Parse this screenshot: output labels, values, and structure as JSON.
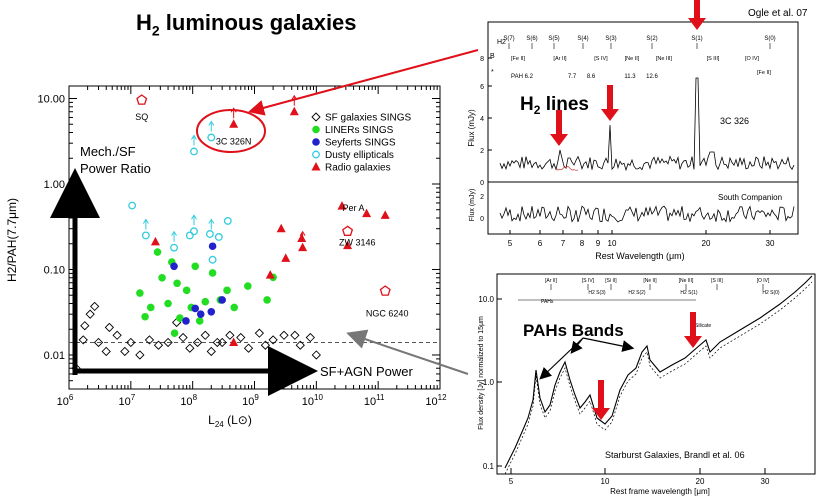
{
  "page_title": "H₂ luminous galaxies",
  "title_main": "H",
  "title_sub": "2",
  "title_rest": " luminous galaxies",
  "colors": {
    "red": "#e0101a",
    "green": "#22dd22",
    "blue": "#2222cc",
    "cyan": "#33ccdd",
    "gray": "#777777"
  },
  "chart_data": [
    {
      "type": "scatter",
      "id": "main-plot",
      "xscale": "log",
      "yscale": "log",
      "xlim": [
        1000000.0,
        1000000000000.0
      ],
      "ylim": [
        0.004,
        14
      ],
      "xlabel": "L24 (L⊙)",
      "xlabel_main": "L",
      "xlabel_sub": "24",
      "xlabel_rest": " (L⊙)",
      "ylabel": "H2/PAH(7.7μm)",
      "xticks": [
        {
          "v": 1000000.0,
          "b": "10",
          "e": "6"
        },
        {
          "v": 10000000.0,
          "b": "10",
          "e": "7"
        },
        {
          "v": 100000000.0,
          "b": "10",
          "e": "8"
        },
        {
          "v": 1000000000.0,
          "b": "10",
          "e": "9"
        },
        {
          "v": 10000000000.0,
          "b": "10",
          "e": "10"
        },
        {
          "v": 100000000000.0,
          "b": "10",
          "e": "11"
        },
        {
          "v": 1000000000000.0,
          "b": "10",
          "e": "12"
        }
      ],
      "yticks": [
        {
          "v": 0.01,
          "l": "0.01"
        },
        {
          "v": 0.1,
          "l": "0.10"
        },
        {
          "v": 1,
          "l": "1.00"
        },
        {
          "v": 10,
          "l": "10.00"
        }
      ],
      "hline": 0.014,
      "legend": [
        "SF galaxies SINGS",
        "LINERs SINGS",
        "Seyferts SINGS",
        "Dusty ellipticals",
        "Radio galaxies"
      ],
      "series": [
        {
          "name": "SF galaxies SINGS",
          "marker": "diamond",
          "points": [
            [
              1300000.0,
              0.007
            ],
            [
              1800000.0,
              0.022
            ],
            [
              2200000.0,
              0.03
            ],
            [
              2600000.0,
              0.037
            ],
            [
              1700000.0,
              0.015
            ],
            [
              3000000.0,
              0.014
            ],
            [
              4000000.0,
              0.011
            ],
            [
              4500000.0,
              0.021
            ],
            [
              6000000.0,
              0.017
            ],
            [
              8000000.0,
              0.011
            ],
            [
              10000000.0,
              0.014
            ],
            [
              14000000.0,
              0.01
            ],
            [
              20000000.0,
              0.015
            ],
            [
              28000000.0,
              0.013
            ],
            [
              40000000.0,
              0.014
            ],
            [
              55000000.0,
              0.024
            ],
            [
              70000000.0,
              0.016
            ],
            [
              90000000.0,
              0.012
            ],
            [
              120000000.0,
              0.014
            ],
            [
              160000000.0,
              0.017
            ],
            [
              200000000.0,
              0.011
            ],
            [
              250000000.0,
              0.014
            ],
            [
              300000000.0,
              0.014
            ],
            [
              400000000.0,
              0.017
            ],
            [
              600000000.0,
              0.016
            ],
            [
              800000000.0,
              0.012
            ],
            [
              1200000000.0,
              0.018
            ],
            [
              1500000000.0,
              0.013
            ],
            [
              2000000000.0,
              0.015
            ],
            [
              3000000000.0,
              0.017
            ],
            [
              4500000000.0,
              0.017
            ],
            [
              5500000000.0,
              0.013
            ],
            [
              8000000000.0,
              0.016
            ],
            [
              10000000000.0,
              0.01
            ]
          ]
        },
        {
          "name": "LINERs SINGS",
          "marker": "circle",
          "points": [
            [
              14000000.0,
              0.053
            ],
            [
              17000000.0,
              0.028
            ],
            [
              21000000.0,
              0.036
            ],
            [
              27000000.0,
              0.16
            ],
            [
              32000000.0,
              0.08
            ],
            [
              40000000.0,
              0.04
            ],
            [
              46000000.0,
              0.122
            ],
            [
              51000000.0,
              0.018
            ],
            [
              56000000.0,
              0.069
            ],
            [
              62000000.0,
              0.027
            ],
            [
              80000000.0,
              0.057
            ],
            [
              95000000.0,
              0.036
            ],
            [
              110000000.0,
              0.109
            ],
            [
              130000000.0,
              0.025
            ],
            [
              160000000.0,
              0.042
            ],
            [
              210000000.0,
              0.091
            ],
            [
              280000000.0,
              0.044
            ],
            [
              360000000.0,
              0.057
            ],
            [
              470000000.0,
              0.036
            ],
            [
              780000000.0,
              0.064
            ],
            [
              1600000000.0,
              0.044
            ],
            [
              2000000000.0,
              0.081
            ]
          ]
        },
        {
          "name": "Seyferts SINGS",
          "marker": "circle",
          "points": [
            [
              50000000.0,
              0.109
            ],
            [
              78000000.0,
              0.025
            ],
            [
              110000000.0,
              0.035
            ],
            [
              135000000.0,
              0.03
            ],
            [
              200000000.0,
              0.032
            ],
            [
              210000000.0,
              0.187
            ],
            [
              300000000.0,
              0.044
            ]
          ]
        },
        {
          "name": "Dusty ellipticals",
          "marker": "ring",
          "points": [
            [
              105000000.0,
              2.4
            ],
            [
              200000000.0,
              3.5
            ],
            [
              10500000.0,
              0.56
            ],
            [
              17500000.0,
              0.25
            ],
            [
              50000000.0,
              0.18
            ],
            [
              90000000.0,
              0.25
            ],
            [
              105000000.0,
              0.28
            ],
            [
              190000000.0,
              0.26
            ],
            [
              265000000.0,
              0.24
            ],
            [
              370000000.0,
              0.37
            ],
            [
              210000000.0,
              0.13
            ]
          ],
          "arrows": [
            [
              105000000.0,
              2.4
            ],
            [
              200000000.0,
              3.5
            ],
            [
              17500000.0,
              0.25
            ],
            [
              50000000.0,
              0.18
            ],
            [
              105000000.0,
              0.28
            ],
            [
              200000000.0,
              0.25
            ]
          ]
        },
        {
          "name": "Radio galaxies",
          "marker": "triangle",
          "points": [
            [
              460000000.0,
              5.0
            ],
            [
              4400000000.0,
              7.0
            ],
            [
              6000000000.0,
              0.18
            ],
            [
              2700000000.0,
              0.3
            ],
            [
              26000000000.0,
              0.55
            ],
            [
              65000000000.0,
              0.45
            ],
            [
              130000000000.0,
              0.43
            ],
            [
              5800000000.0,
              0.23
            ],
            [
              32000000000.0,
              0.19
            ],
            [
              25000000.0,
              0.21
            ],
            [
              1800000000.0,
              0.086
            ],
            [
              3200000000.0,
              0.135
            ],
            [
              460000000.0,
              0.014
            ]
          ],
          "arrows": [
            [
              460000000.0,
              5.0
            ],
            [
              4400000000.0,
              7.0
            ],
            [
              6000000000.0,
              0.18
            ]
          ]
        },
        {
          "name": "Pentagons",
          "marker": "pentagon",
          "points": [
            [
              15000000.0,
              9.6
            ],
            [
              32000000000.0,
              0.28
            ],
            [
              130000000000.0,
              0.056
            ]
          ]
        }
      ],
      "labels": [
        {
          "t": "SQ",
          "x": 15000000.0,
          "y": 5.6
        },
        {
          "t": "3C 326N",
          "x": 460000000.0,
          "y": 2.9
        },
        {
          "t": "Per A",
          "x": 40000000000.0,
          "y": 0.48
        },
        {
          "t": "ZW 3146",
          "x": 46000000000.0,
          "y": 0.19
        },
        {
          "t": "NGC 6240",
          "x": 140000000000.0,
          "y": 0.028
        }
      ],
      "arrow_labels": {
        "mech": "Mech./SF",
        "power": "Power Ratio",
        "sfagn": "SF+AGN Power"
      }
    },
    {
      "type": "line",
      "id": "ogle-spectrum",
      "credit": "Ogle et al. 07",
      "ylabel": "Flux (mJy)",
      "ylabel2": "Flux (mJy)",
      "xlabel": "Rest Wavelength (μm)",
      "xticks": [
        "5",
        "6",
        "7",
        "8",
        "9",
        "10",
        "20",
        "30"
      ],
      "yticks": [
        "0",
        "2",
        "4",
        "6",
        "8"
      ],
      "yticks2": [
        "0",
        "2"
      ],
      "h2_label": "H2",
      "b_label": "B",
      "dot_label": "*",
      "top_lines": [
        "S(7)",
        "S(6)",
        "S(5)",
        "S(4)",
        "S(3)",
        "S(2)",
        "S(1)",
        "S(0)"
      ],
      "fine_lines": [
        "[Fe II]",
        "[Ar II]",
        "[S IV]",
        "[Ne II]",
        "[Ne III]",
        "[S III]",
        "[O IV]",
        "[Fe II]"
      ],
      "pah_lines": [
        "PAH 6.2",
        "7.7",
        "8.6",
        "11.3",
        "12.6"
      ],
      "source": "3C 326",
      "companion": "South Companion",
      "annotation": "H2 lines",
      "annotation_main": "H",
      "annotation_sub": "2",
      "annotation_rest": " lines"
    },
    {
      "type": "line",
      "id": "brandl-spectrum",
      "credit": "Starburst  Galaxies, Brandl et al. 06",
      "ylabel": "Flux density [Jy] normalized to 15μm",
      "xlabel": "Rest frame wavelength [μm]",
      "xticks": [
        "5",
        "10",
        "20",
        "30"
      ],
      "yticks": [
        "0.1",
        "1.0",
        "10.0"
      ],
      "annotation": "PAHs Bands",
      "top_lines": [
        "[Ar II]",
        "[S IV]",
        "[Ne II]",
        "[Ne III]",
        "[S III]",
        "[O IV]",
        "[Si II]"
      ],
      "h2_lines": [
        "H2 S(3)",
        "H2 S(2)",
        "H2 S(1)",
        "H2 S(0)"
      ],
      "small": [
        "PAHs",
        "Silicate"
      ]
    }
  ]
}
